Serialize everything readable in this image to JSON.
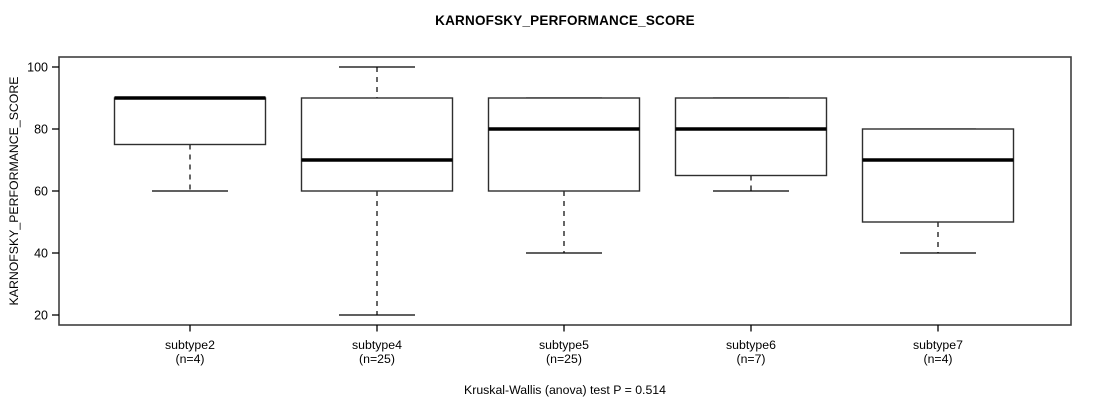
{
  "page": {
    "background": "#ffffff"
  },
  "chart_data": {
    "type": "boxplot",
    "title": "KARNOFSKY_PERFORMANCE_SCORE",
    "ylabel": "KARNOFSKY_PERFORMANCE_SCORE",
    "footnote": "Kruskal-Wallis (anova) test P = 0.514",
    "xlabel": "",
    "yticks": [
      20,
      40,
      60,
      80,
      100
    ],
    "ylim": [
      16.5,
      103.5
    ],
    "grid": false,
    "legend": "none",
    "colors": {
      "box_fill": "#ffffff",
      "box_stroke": "#2e2e2e",
      "median": "#000000",
      "whisker": "#000000",
      "frame": "#3f3f3f",
      "text": "#000000"
    },
    "groups": [
      {
        "label": "subtype2",
        "count_label": "(n=4)",
        "whisker_low": 60,
        "q1": 75,
        "median": 90,
        "q3": 90,
        "whisker_high": 90
      },
      {
        "label": "subtype4",
        "count_label": "(n=25)",
        "whisker_low": 20,
        "q1": 60,
        "median": 70,
        "q3": 90,
        "whisker_high": 100
      },
      {
        "label": "subtype5",
        "count_label": "(n=25)",
        "whisker_low": 40,
        "q1": 60,
        "median": 80,
        "q3": 90,
        "whisker_high": 90
      },
      {
        "label": "subtype6",
        "count_label": "(n=7)",
        "whisker_low": 60,
        "q1": 65,
        "median": 80,
        "q3": 90,
        "whisker_high": 90
      },
      {
        "label": "subtype7",
        "count_label": "(n=4)",
        "whisker_low": 40,
        "q1": 50,
        "median": 70,
        "q3": 80,
        "whisker_high": 80
      }
    ]
  }
}
